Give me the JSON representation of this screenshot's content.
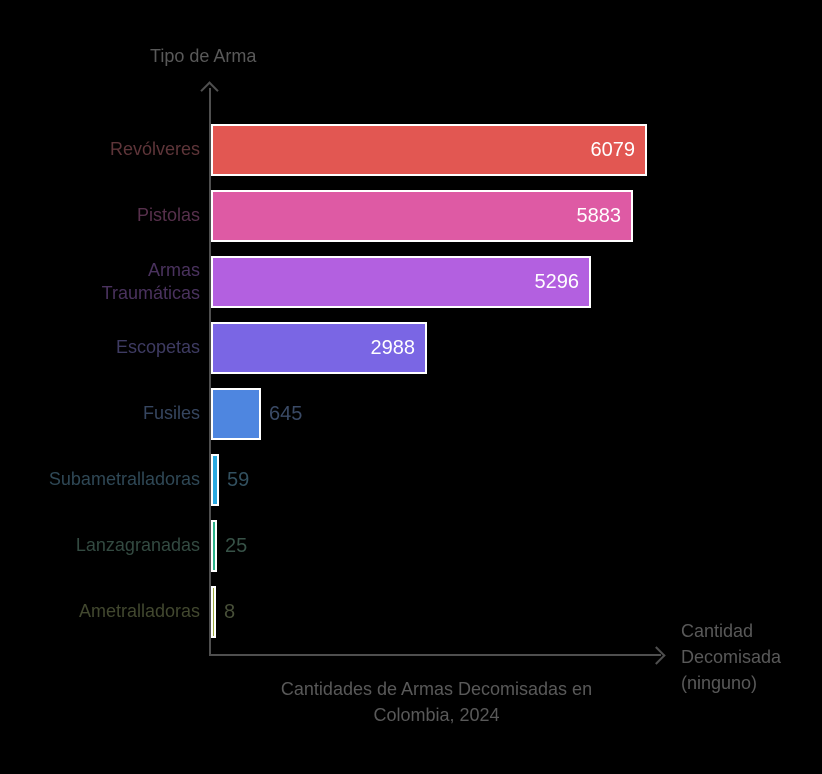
{
  "chart": {
    "title": "Cantidades de Armas Decomisadas en\nColombia, 2024",
    "y_axis_label": "Tipo de Arma",
    "x_axis_label": "Cantidad\nDecomisada\n(ninguno)"
  },
  "colors": {
    "background": "#000000",
    "axis": "#4f4f4f",
    "muted_text": "#595959",
    "bar_border": "#ffffff"
  },
  "chart_data": {
    "type": "bar",
    "orientation": "horizontal",
    "title": "Cantidades de Armas Decomisadas en Colombia, 2024",
    "xlabel": "Cantidad Decomisada (ninguno)",
    "ylabel": "Tipo de Arma",
    "legend": false,
    "grid": false,
    "categories": [
      "Revólveres",
      "Pistolas",
      "Armas\nTraumáticas",
      "Escopetas",
      "Fusiles",
      "Subametralladoras",
      "Lanzagranadas",
      "Ametralladoras"
    ],
    "values": [
      6079,
      5883,
      5296,
      2988,
      645,
      59,
      25,
      8
    ],
    "bar_colors": [
      "#e25752",
      "#de5aa4",
      "#b360e0",
      "#7a66e4",
      "#4e86e0",
      "#2aa9e0",
      "#2db48b",
      "#9aa83a"
    ],
    "category_label_colors": [
      "#5e3539",
      "#57304c",
      "#4a325e",
      "#3e3b62",
      "#364660",
      "#2f4856",
      "#334a41",
      "#42482f"
    ],
    "value_label_colors": [
      "#ffffff",
      "#ffffff",
      "#ffffff",
      "#ffffff",
      "#3a4a66",
      "#32505f",
      "#375247",
      "#474f38"
    ]
  }
}
